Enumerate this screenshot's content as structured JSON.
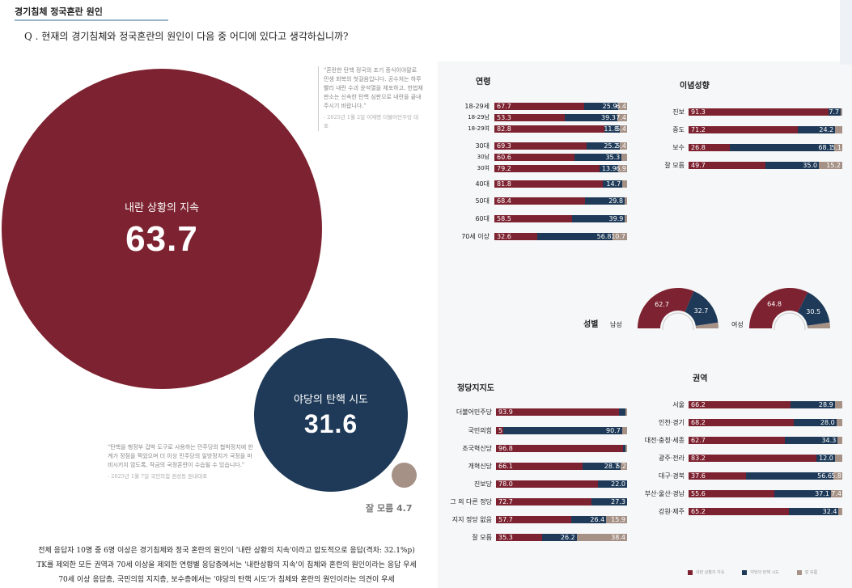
{
  "header": {
    "title": "경기침체 정국혼란 원인",
    "question": "Q . 현재의 경기침체와 정국혼란의 원인이 다음 중 어디에 있다고 생각하십니까?"
  },
  "bubbles": {
    "main": {
      "label": "내란 상황의 지속",
      "value": "63.7"
    },
    "second": {
      "label": "야당의 탄핵 시도",
      "value": "31.6"
    },
    "third": {
      "label": "잘 모름 4.7"
    }
  },
  "quotes": {
    "q1": "\"혼란한 탄핵 정국의 조기 종식이야말로 민생 회복의 첫걸음입니다. 공수처는 하루 빨리 내란 수괴 윤석열을 체포하고, 헌법재판소는 신속한 탄핵 심판으로 내란을 끝내주시기 바랍니다.\"",
    "q1_src": "- 2025년 1월 2일 이재명 더불어민주당 대표",
    "q2": "\"탄핵을 행정부 겁박 도구로 사용하는 민주당의 협박정치에 한계가 정점을 찍었으며 더 이상 민주당의 일방정치가 국정을 마비시키지 않도록, 작금의 국정혼란이 수습될 수 있습니다.\"",
    "q2_src": "- 2025년 1월 7일 국민의힘 권성동 원내대표"
  },
  "summary": [
    "전체 응답자 10명 중 6명 이상은 경기침체와 정국 혼란의 원인이 '내란 상황의 지속'이라고 압도적으로 응답(격차: 32.1%p)",
    "TK를 제외한 모든 권역과 70세 이상을 제외한 연령별 응답층에서는 '내란상황의 지속'이 침체와 혼란의 원인이라는 응답 우세",
    "70세 이상 응답층, 국민의힘 지지층, 보수층에서는 '야당의 탄핵 시도'가 침체와 혼란의 원인이라는 의견이 우세"
  ],
  "sections": {
    "age": "연령",
    "ideology": "이념성향",
    "gender": "성별",
    "party": "정당지지도",
    "region": "권역"
  },
  "legend": {
    "red": "내란 상황의 지속",
    "blue": "야당의 탄핵 시도",
    "gray": "잘 모름"
  },
  "colors": {
    "red": "#7d2230",
    "blue": "#1e3a58",
    "gray": "#a59186"
  },
  "chart_data": [
    {
      "type": "bar",
      "group": "연령",
      "stacked": true,
      "categories": [
        "18-29세",
        "18-29남",
        "18-29여",
        "30대",
        "30남",
        "30여",
        "40대",
        "50대",
        "60대",
        "70세 이상"
      ],
      "series": [
        {
          "name": "내란 상황의 지속",
          "values": [
            67.7,
            53.3,
            82.8,
            69.3,
            60.6,
            79.2,
            81.8,
            68.4,
            58.5,
            32.6
          ]
        },
        {
          "name": "야당의 탄핵 시도",
          "values": [
            25.9,
            39.3,
            11.8,
            25.2,
            35.3,
            13.9,
            14.7,
            29.8,
            39.9,
            56.8
          ]
        },
        {
          "name": "잘 모름",
          "values": [
            6.4,
            7.4,
            5.4,
            5.4,
            4.1,
            6.9,
            3.5,
            1.8,
            1.6,
            10.7
          ]
        }
      ],
      "labels_shown": [
        [
          "67.7",
          "25.9",
          "6.4"
        ],
        [
          "53.3",
          "39.3",
          "7.4"
        ],
        [
          "82.8",
          "11.8",
          "5.4"
        ],
        [
          "69.3",
          "25.2",
          "5.4"
        ],
        [
          "60.6",
          "35.3",
          ""
        ],
        [
          "79.2",
          "13.9",
          "6.9"
        ],
        [
          "81.8",
          "14.7",
          ""
        ],
        [
          "68.4",
          "29.8",
          ""
        ],
        [
          "58.5",
          "39.9",
          ""
        ],
        [
          "32.6",
          "56.8",
          "10.7"
        ]
      ]
    },
    {
      "type": "bar",
      "group": "이념성향",
      "stacked": true,
      "categories": [
        "진보",
        "중도",
        "보수",
        "잘 모름"
      ],
      "series": [
        {
          "name": "내란 상황의 지속",
          "values": [
            91.3,
            71.2,
            26.8,
            49.7
          ]
        },
        {
          "name": "야당의 탄핵 시도",
          "values": [
            7.7,
            24.2,
            68.1,
            35.0
          ]
        },
        {
          "name": "잘 모름",
          "values": [
            1.0,
            4.6,
            5.1,
            15.2
          ]
        }
      ],
      "labels_shown": [
        [
          "91.3",
          "7.7",
          ""
        ],
        [
          "71.2",
          "24.2",
          ""
        ],
        [
          "26.8",
          "68.1",
          "5.1"
        ],
        [
          "49.7",
          "35.0",
          "15.2"
        ]
      ]
    },
    {
      "type": "pie",
      "group": "성별",
      "categories": [
        "남성",
        "여성"
      ],
      "series": [
        {
          "name": "내란 상황의 지속",
          "values": [
            62.7,
            64.8
          ]
        },
        {
          "name": "야당의 탄핵 시도",
          "values": [
            32.7,
            30.5
          ]
        },
        {
          "name": "잘 모름",
          "values": [
            4.6,
            4.7
          ]
        }
      ]
    },
    {
      "type": "bar",
      "group": "정당지지도",
      "stacked": true,
      "categories": [
        "더불어민주당",
        "국민의힘",
        "조국혁신당",
        "개혁신당",
        "진보당",
        "그 외 다른 정당",
        "지지 정당 없음",
        "잘 모름"
      ],
      "series": [
        {
          "name": "내란 상황의 지속",
          "values": [
            93.9,
            5.5,
            96.8,
            66.1,
            78.0,
            72.7,
            57.7,
            35.3
          ]
        },
        {
          "name": "야당의 탄핵 시도",
          "values": [
            5.1,
            90.7,
            2.2,
            28.7,
            22.0,
            27.3,
            26.4,
            26.2
          ]
        },
        {
          "name": "잘 모름",
          "values": [
            1.0,
            3.8,
            1.0,
            5.2,
            0.0,
            0.0,
            15.9,
            38.4
          ]
        }
      ],
      "labels_shown": [
        [
          "93.9",
          "",
          ""
        ],
        [
          "5.5",
          "90.7",
          ""
        ],
        [
          "96.8",
          "",
          ""
        ],
        [
          "66.1",
          "28.7",
          "5.2"
        ],
        [
          "78.0",
          "22.0",
          ""
        ],
        [
          "72.7",
          "27.3",
          ""
        ],
        [
          "57.7",
          "26.4",
          "15.9"
        ],
        [
          "35.3",
          "26.2",
          "38.4"
        ]
      ]
    },
    {
      "type": "bar",
      "group": "권역",
      "stacked": true,
      "categories": [
        "서울",
        "인천·경기",
        "대전·충청·세종",
        "광주·전라",
        "대구·경북",
        "부산·울산·경남",
        "강원·제주"
      ],
      "series": [
        {
          "name": "내란 상황의 지속",
          "values": [
            66.2,
            68.2,
            62.7,
            83.2,
            37.6,
            55.6,
            65.2
          ]
        },
        {
          "name": "야당의 탄핵 시도",
          "values": [
            28.9,
            28.0,
            34.3,
            12.0,
            56.6,
            37.1,
            32.4
          ]
        },
        {
          "name": "잘 모름",
          "values": [
            4.9,
            3.8,
            3.0,
            4.8,
            5.8,
            7.4,
            2.4
          ]
        }
      ],
      "labels_shown": [
        [
          "66.2",
          "28.9",
          ""
        ],
        [
          "68.2",
          "28.0",
          ""
        ],
        [
          "62.7",
          "34.3",
          ""
        ],
        [
          "83.2",
          "12.0",
          ""
        ],
        [
          "37.6",
          "56.6",
          "5.8"
        ],
        [
          "55.6",
          "37.1",
          "7.4"
        ],
        [
          "65.2",
          "32.4",
          ""
        ]
      ]
    }
  ]
}
